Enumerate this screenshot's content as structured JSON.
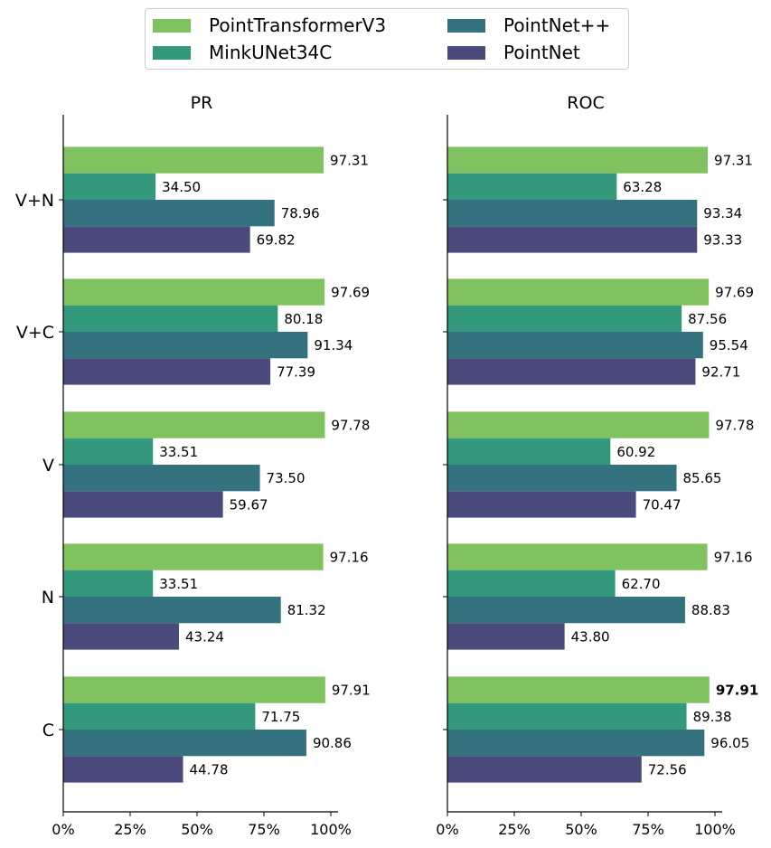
{
  "colors": {
    "PointTransformerV3": "#7fc25f",
    "MinkUNet34C": "#33987c",
    "PointNet++": "#35727f",
    "PointNet": "#4a4b7c"
  },
  "legend": {
    "entries": [
      "PointTransformerV3",
      "MinkUNet34C",
      "PointNet++",
      "PointNet"
    ]
  },
  "chart_data": [
    {
      "type": "bar",
      "orientation": "horizontal",
      "title": "PR",
      "categories": [
        "V+N",
        "V+C",
        "V",
        "N",
        "C"
      ],
      "xlim": [
        0,
        100
      ],
      "xticks": [
        "0%",
        "25%",
        "50%",
        "75%",
        "100%"
      ],
      "series": [
        {
          "name": "PointTransformerV3",
          "values": [
            97.31,
            97.69,
            97.78,
            97.16,
            97.91
          ],
          "labels": [
            "97.31",
            "97.69",
            "97.78",
            "97.16",
            "97.91"
          ]
        },
        {
          "name": "MinkUNet34C",
          "values": [
            34.5,
            80.18,
            33.51,
            33.51,
            71.75
          ],
          "labels": [
            "34.50",
            "80.18",
            "33.51",
            "33.51",
            "71.75"
          ]
        },
        {
          "name": "PointNet++",
          "values": [
            78.96,
            91.34,
            73.5,
            81.32,
            90.86
          ],
          "labels": [
            "78.96",
            "91.34",
            "73.50",
            "81.32",
            "90.86"
          ]
        },
        {
          "name": "PointNet",
          "values": [
            69.82,
            77.39,
            59.67,
            43.24,
            44.78
          ],
          "labels": [
            "69.82",
            "77.39",
            "59.67",
            "43.24",
            "44.78"
          ]
        }
      ],
      "bold_labels": []
    },
    {
      "type": "bar",
      "orientation": "horizontal",
      "title": "ROC",
      "categories": [
        "V+N",
        "V+C",
        "V",
        "N",
        "C"
      ],
      "xlim": [
        0,
        100
      ],
      "xticks": [
        "0%",
        "25%",
        "50%",
        "75%",
        "100%"
      ],
      "series": [
        {
          "name": "PointTransformerV3",
          "values": [
            97.31,
            97.69,
            97.78,
            97.16,
            97.91
          ],
          "labels": [
            "97.31",
            "97.69",
            "97.78",
            "97.16",
            "97.91"
          ]
        },
        {
          "name": "MinkUNet34C",
          "values": [
            63.28,
            87.56,
            60.92,
            62.7,
            89.38
          ],
          "labels": [
            "63.28",
            "87.56",
            "60.92",
            "62.70",
            "89.38"
          ]
        },
        {
          "name": "PointNet++",
          "values": [
            93.34,
            95.54,
            85.65,
            88.83,
            96.05
          ],
          "labels": [
            "93.34",
            "95.54",
            "85.65",
            "88.83",
            "96.05"
          ]
        },
        {
          "name": "PointNet",
          "values": [
            93.33,
            92.71,
            70.47,
            43.8,
            72.56
          ],
          "labels": [
            "93.33",
            "92.71",
            "70.47",
            "43.80",
            "72.56"
          ]
        }
      ],
      "bold_labels": [
        [
          0,
          4
        ]
      ]
    }
  ]
}
